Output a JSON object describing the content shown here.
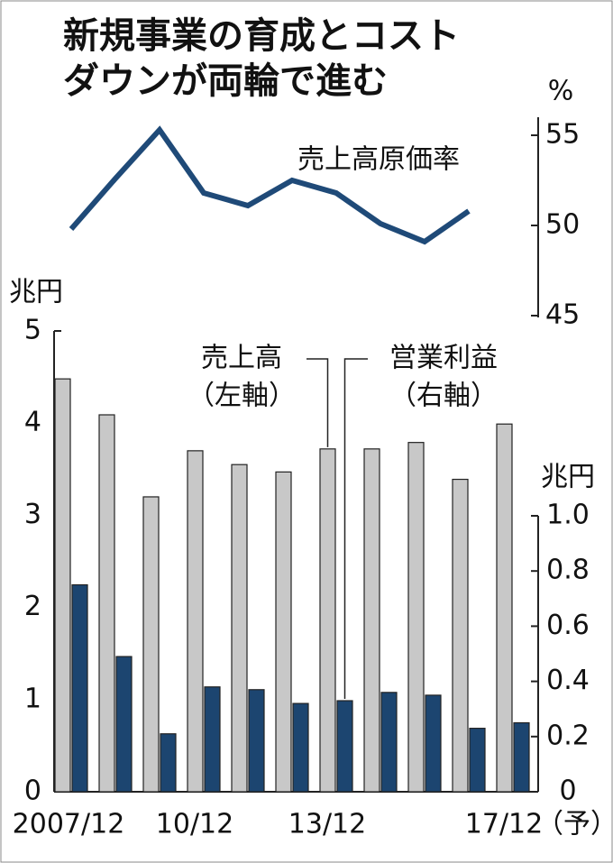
{
  "chart_data": [
    {
      "type": "line",
      "title_lines": [
        "新規事業の育成とコスト",
        "ダウンが両輪で進む"
      ],
      "ylabel": "%",
      "ylim": [
        45,
        56
      ],
      "yticks": [
        45,
        50,
        55
      ],
      "series": [
        {
          "name": "売上高原価率",
          "color": "#1f4a78",
          "values": [
            49.8,
            52.6,
            55.3,
            51.8,
            51.1,
            52.5,
            51.8,
            50.1,
            49.1,
            50.8,
            null
          ]
        }
      ]
    },
    {
      "type": "bar",
      "categories": [
        "2007/12",
        null,
        null,
        "10/12",
        null,
        null,
        "13/12",
        null,
        null,
        null,
        "17/12"
      ],
      "forecast_label": "（予）",
      "ylabel": "兆円",
      "y2label": "兆円",
      "ylim": [
        0,
        5
      ],
      "yticks": [
        0,
        1,
        2,
        3,
        4,
        5
      ],
      "y2lim": [
        0,
        1.0
      ],
      "y2ticks": [
        0,
        0.2,
        0.4,
        0.6,
        0.8,
        {
          "value": 1.0,
          "label": "1.0"
        }
      ],
      "series": [
        {
          "name": "売上高",
          "axis_note": "（左軸）",
          "color": "#c8c8c8",
          "values": [
            4.48,
            4.09,
            3.2,
            3.7,
            3.55,
            3.47,
            3.72,
            3.72,
            3.79,
            3.39,
            3.99
          ]
        },
        {
          "name": "営業利益",
          "axis_note": "（右軸）",
          "color": "#1c4570",
          "axis": "y2",
          "values": [
            0.75,
            0.49,
            0.21,
            0.38,
            0.37,
            0.32,
            0.33,
            0.36,
            0.35,
            0.23,
            0.25
          ]
        }
      ]
    }
  ]
}
